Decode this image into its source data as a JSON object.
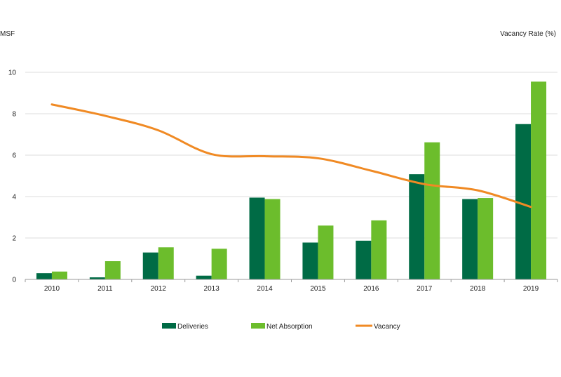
{
  "chart_data": {
    "type": "bar",
    "title": "",
    "y_left_label": "MSF",
    "y_right_label": "Vacancy Rate (%)",
    "categories": [
      "2010",
      "2011",
      "2012",
      "2013",
      "2014",
      "2015",
      "2016",
      "2017",
      "2018",
      "2019"
    ],
    "ylim": [
      0,
      10
    ],
    "yticks": [
      "0",
      "2",
      "4",
      "6",
      "8",
      "10"
    ],
    "grid": true,
    "legend_position": "bottom",
    "series": [
      {
        "name": "Deliveries",
        "type": "bar",
        "color": "#006B45",
        "values": [
          0.3,
          0.1,
          1.3,
          0.18,
          3.95,
          1.78,
          1.87,
          5.08,
          3.88,
          7.5
        ]
      },
      {
        "name": "Net Absorption",
        "type": "bar",
        "color": "#6CBD2C",
        "values": [
          0.38,
          0.88,
          1.55,
          1.48,
          3.88,
          2.6,
          2.85,
          6.62,
          3.93,
          9.55
        ]
      },
      {
        "name": "Vacancy",
        "type": "line",
        "color": "#F08A24",
        "values": [
          8.45,
          7.9,
          7.2,
          6.05,
          5.95,
          5.85,
          5.25,
          4.6,
          4.3,
          3.5
        ]
      }
    ]
  }
}
